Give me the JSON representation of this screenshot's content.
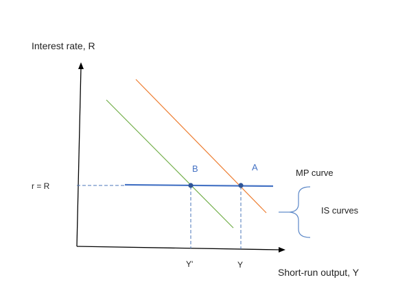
{
  "labels": {
    "y_axis": "Interest rate, R",
    "x_axis": "Short-run output, Y",
    "r_equals_R": "r = R",
    "mp_curve": "MP curve",
    "is_curves": "IS curves",
    "point_a": "A",
    "point_b": "B",
    "y_tick": "Y",
    "y_prime_tick": "Y'"
  },
  "colors": {
    "axis": "#000000",
    "mp_line": "#4472c4",
    "is_original": "#ed7d31",
    "is_shifted": "#70ad47",
    "points": "#2f5597",
    "dashed": "#4a74b8",
    "point_labels": "#4472c4",
    "brace": "#5b87c7",
    "text": "#222222"
  },
  "icons": {
    "y_axis_arrow": "arrowhead-up",
    "x_axis_arrow": "arrowhead-right",
    "brace": "curly-brace-left"
  }
}
